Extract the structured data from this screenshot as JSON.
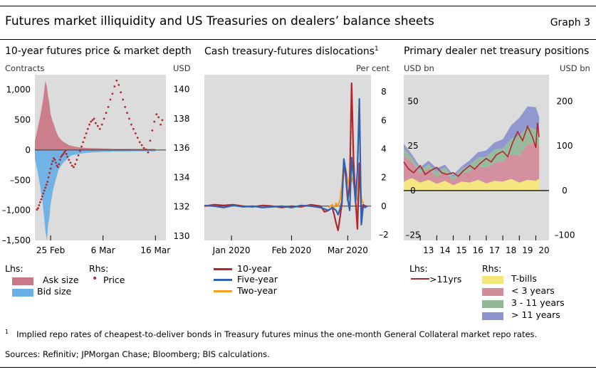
{
  "header": {
    "title": "Futures market illiquidity and US Treasuries on dealers’ balance sheets",
    "graph_label": "Graph 3"
  },
  "footnote": {
    "marker": "1",
    "text": "Implied repo rates of cheapest-to-deliver bonds in Treasury futures minus the one-month General Collateral market repo rates."
  },
  "sources": "Sources: Refinitiv; JPMorgan Chase; Bloomberg; BIS calculations.",
  "colors": {
    "panel_bg": "#dcdcdc",
    "ask": "#c97887",
    "bid": "#6ab0e4",
    "price": "#b0282e",
    "ten_year": "#b0282e",
    "five_year": "#2e62b0",
    "two_year": "#f5a020",
    "tbills": "#f4e77a",
    "lt3": "#d28b9a",
    "y3_11": "#92b898",
    "gt11": "#8c93cf",
    "net11": "#b0282e"
  },
  "chart_data": [
    {
      "type": "bar",
      "title": "10-year futures price & market depth",
      "left_unit": "Contracts",
      "right_unit": "USD",
      "ylim": [
        -1500,
        1250
      ],
      "y2lim": [
        129.7,
        141.0
      ],
      "yticks": [
        "1,000",
        "500",
        "0",
        "–500",
        "–1,000",
        "–1,500"
      ],
      "yticks_values": [
        1000,
        500,
        0,
        -500,
        -1000,
        -1500
      ],
      "y2ticks": [
        "140",
        "138",
        "136",
        "134",
        "132",
        "130"
      ],
      "y2ticks_values": [
        140,
        138,
        136,
        134,
        132,
        130
      ],
      "xticks": [
        "25 Feb",
        "6 Mar",
        "16 Mar"
      ],
      "xticks_values": [
        0,
        10,
        20
      ],
      "xlim": [
        -3,
        22
      ],
      "legend_headers": {
        "lhs": "Lhs:",
        "rhs": "Rhs:"
      },
      "series": [
        {
          "name": "Ask size",
          "axis": "left",
          "kind": "area",
          "color": "#c97887",
          "x": [
            -3,
            -2.5,
            -2,
            -1.5,
            -1.2,
            -1,
            -0.7,
            -0.5,
            -0.2,
            0,
            0.3,
            0.5,
            0.8,
            1,
            1.3,
            1.5,
            2,
            2.5,
            3,
            3.5,
            4,
            5,
            6,
            7,
            8,
            9,
            10,
            11,
            12,
            13,
            14,
            15,
            16,
            17,
            18,
            19,
            20
          ],
          "values": [
            150,
            350,
            550,
            800,
            1000,
            1150,
            1050,
            900,
            750,
            600,
            500,
            450,
            380,
            320,
            260,
            220,
            170,
            130,
            110,
            80,
            70,
            50,
            40,
            35,
            30,
            30,
            25,
            25,
            20,
            20,
            20,
            20,
            20,
            20,
            20,
            20,
            20
          ]
        },
        {
          "name": "Bid size",
          "axis": "left",
          "kind": "area",
          "color": "#6ab0e4",
          "x": [
            -3,
            -2.5,
            -2,
            -1.5,
            -1.2,
            -1,
            -0.7,
            -0.5,
            -0.2,
            0,
            0.3,
            0.5,
            0.8,
            1,
            1.3,
            1.5,
            2,
            2.5,
            3,
            3.5,
            4,
            5,
            6,
            7,
            8,
            9,
            10,
            11,
            12,
            13,
            14,
            15,
            16,
            17,
            18,
            19,
            20
          ],
          "values": [
            -150,
            -350,
            -600,
            -900,
            -1150,
            -1350,
            -1500,
            -1250,
            -1100,
            -900,
            -750,
            -650,
            -550,
            -480,
            -400,
            -330,
            -260,
            -200,
            -160,
            -120,
            -90,
            -70,
            -55,
            -45,
            -40,
            -35,
            -30,
            -30,
            -25,
            -25,
            -25,
            -25,
            -20,
            -20,
            -20,
            -20,
            -20
          ]
        },
        {
          "name": "Price",
          "axis": "right",
          "kind": "points",
          "color": "#b0282e",
          "x": [
            -2.6,
            -2.4,
            -2.2,
            -2,
            -1.8,
            -1.6,
            -1.4,
            -1.2,
            -1,
            -0.8,
            -0.6,
            -0.4,
            -0.2,
            0,
            0.2,
            0.4,
            0.6,
            0.8,
            1,
            1.2,
            1.4,
            1.6,
            1.8,
            2,
            2.2,
            2.4,
            2.6,
            2.8,
            3,
            3.2,
            3.5,
            3.8,
            4.1,
            4.4,
            4.7,
            5,
            5.3,
            5.6,
            5.9,
            6.2,
            6.5,
            6.8,
            7.1,
            7.4,
            7.7,
            8,
            8.3,
            8.6,
            9,
            9.4,
            9.8,
            10.2,
            10.6,
            11,
            11.4,
            11.8,
            12.2,
            12.6,
            13,
            13.4,
            13.8,
            14.2,
            14.6,
            15,
            15.4,
            15.8,
            16.2,
            16.6,
            17,
            17.4,
            17.8,
            18.2,
            18.6,
            19,
            19.4,
            19.8,
            20.2,
            20.6,
            21,
            21.3
          ],
          "values": [
            131.8,
            131.9,
            132.1,
            132.3,
            132.5,
            132.7,
            132.9,
            133.1,
            133.3,
            133.5,
            133.7,
            134.0,
            134.3,
            134.6,
            134.9,
            135.1,
            135.3,
            135.2,
            135.0,
            134.8,
            134.7,
            134.9,
            135.2,
            135.4,
            135.5,
            135.6,
            135.7,
            135.8,
            135.6,
            135.4,
            135.2,
            135.0,
            134.8,
            134.7,
            134.9,
            135.2,
            135.5,
            135.8,
            136.1,
            136.4,
            136.7,
            137.0,
            137.3,
            137.6,
            137.8,
            137.9,
            138.0,
            137.7,
            137.5,
            137.3,
            137.6,
            138.0,
            138.4,
            138.8,
            139.3,
            139.7,
            140.2,
            140.6,
            140.3,
            139.8,
            139.3,
            138.8,
            138.4,
            138.0,
            137.6,
            137.3,
            137.0,
            136.7,
            136.4,
            136.2,
            136.0,
            135.9,
            135.7,
            136.5,
            137.2,
            137.8,
            138.3,
            138.1,
            137.6,
            137.9
          ]
        }
      ]
    },
    {
      "type": "line",
      "title": "Cash treasury-futures dislocations",
      "title_marker": "1",
      "right_unit": "Per cent",
      "ylim": [
        -2.4,
        9.2
      ],
      "yticks": [
        "8",
        "6",
        "4",
        "2",
        "0",
        "–2"
      ],
      "yticks_values": [
        8,
        6,
        4,
        2,
        0,
        -2
      ],
      "xticks": [
        "Jan 2020",
        "Feb 2020",
        "Mar 2020"
      ],
      "xticks_values": [
        14,
        45,
        74
      ],
      "xlim": [
        0,
        86
      ],
      "series": [
        {
          "name": "10-year",
          "color": "#b0282e",
          "x": [
            0,
            5,
            10,
            15,
            20,
            25,
            30,
            35,
            40,
            45,
            50,
            55,
            60,
            62,
            64,
            66,
            67,
            68,
            69,
            70,
            71,
            72,
            73,
            74,
            75,
            76,
            77,
            78,
            79,
            80,
            81,
            82,
            83,
            84
          ],
          "values": [
            0,
            0.1,
            0.05,
            0.1,
            0.0,
            -0.05,
            0.05,
            0.0,
            -0.1,
            0.0,
            -0.05,
            0.1,
            0.0,
            -0.4,
            -0.3,
            -0.1,
            -0.6,
            -1.2,
            -1.7,
            -0.8,
            0.2,
            3.2,
            2.0,
            0.4,
            1.5,
            8.6,
            3.2,
            0.5,
            -1.6,
            3.0,
            -0.3,
            0.1,
            0.0,
            0.0
          ]
        },
        {
          "name": "Five-year",
          "color": "#2e62b0",
          "x": [
            0,
            5,
            10,
            15,
            20,
            25,
            30,
            35,
            40,
            45,
            50,
            55,
            60,
            62,
            64,
            66,
            67,
            68,
            69,
            70,
            71,
            72,
            73,
            74,
            75,
            76,
            77,
            78,
            79,
            80,
            81,
            82,
            83,
            84
          ],
          "values": [
            0.05,
            0.0,
            -0.1,
            0.05,
            -0.05,
            0.0,
            -0.1,
            -0.05,
            0.0,
            -0.1,
            0.05,
            0.0,
            -0.1,
            -0.2,
            -0.3,
            -0.1,
            -0.2,
            -0.3,
            -0.6,
            -0.2,
            0.3,
            3.3,
            2.4,
            0.5,
            -0.3,
            3.4,
            2.0,
            0.3,
            2.5,
            7.5,
            -1.3,
            0.0,
            -0.1,
            0.0
          ]
        },
        {
          "name": "Two-year",
          "color": "#f5a020",
          "x": [
            64,
            66,
            67,
            68,
            69,
            70,
            71,
            72,
            73,
            74,
            75,
            76,
            77,
            78,
            79,
            80,
            81,
            82
          ],
          "values": [
            -0.1,
            0.1,
            -0.1,
            0.2,
            0.0,
            0.4,
            1.5,
            3.0,
            2.6,
            1.8,
            1.2,
            2.0,
            1.6,
            0.8,
            0.4,
            2.0,
            0.5,
            0.2
          ]
        }
      ]
    },
    {
      "type": "area",
      "title": "Primary dealer net treasury positions",
      "left_unit": "USD bn",
      "right_unit": "USD bn",
      "ylim": [
        -28,
        65
      ],
      "y2lim": [
        -112,
        260
      ],
      "yticks": [
        "50",
        "25",
        "0",
        "–25"
      ],
      "yticks_values": [
        50,
        25,
        0,
        -25
      ],
      "y2ticks": [
        "200",
        "100",
        "0",
        "–100"
      ],
      "y2ticks_values": [
        200,
        100,
        0,
        -100
      ],
      "xticks": [
        "13",
        "14",
        "15",
        "16",
        "17",
        "18",
        "19",
        "20"
      ],
      "xticks_values": [
        2013,
        2014,
        2015,
        2016,
        2017,
        2018,
        2019,
        2020
      ],
      "xlim": [
        2012.0,
        2020.8
      ],
      "legend_headers": {
        "lhs": "Lhs:",
        "rhs": "Rhs:"
      },
      "series": [
        {
          "name": ">11yrs",
          "axis": "left",
          "kind": "line",
          "color": "#b0282e",
          "x": [
            2012.0,
            2012.3,
            2012.6,
            2013.0,
            2013.3,
            2013.6,
            2014.0,
            2014.3,
            2014.6,
            2015.0,
            2015.3,
            2015.6,
            2016.0,
            2016.3,
            2016.6,
            2017.0,
            2017.3,
            2017.6,
            2018.0,
            2018.3,
            2018.6,
            2018.9,
            2019.2,
            2019.5,
            2019.8,
            2020.0,
            2020.1,
            2020.2
          ],
          "values": [
            16,
            12,
            10,
            14,
            9,
            11,
            13,
            10,
            9,
            10,
            8,
            11,
            14,
            12,
            15,
            18,
            16,
            20,
            22,
            19,
            27,
            33,
            28,
            36,
            30,
            24,
            38,
            30
          ]
        },
        {
          "name": "T-bills",
          "axis": "right",
          "kind": "area",
          "color": "#f4e77a",
          "x": [
            2012.0,
            2012.5,
            2013.0,
            2013.5,
            2014.0,
            2014.5,
            2015.0,
            2015.5,
            2016.0,
            2016.5,
            2017.0,
            2017.5,
            2018.0,
            2018.5,
            2019.0,
            2019.5,
            2020.0,
            2020.2
          ],
          "values": [
            20,
            28,
            18,
            24,
            15,
            22,
            12,
            20,
            18,
            24,
            16,
            22,
            20,
            26,
            18,
            24,
            22,
            26
          ]
        },
        {
          "name": "< 3 years",
          "axis": "right",
          "kind": "area",
          "color": "#d28b9a",
          "x": [
            2012.0,
            2012.5,
            2013.0,
            2013.5,
            2014.0,
            2014.5,
            2015.0,
            2015.5,
            2016.0,
            2016.5,
            2017.0,
            2017.5,
            2018.0,
            2018.5,
            2019.0,
            2019.5,
            2020.0,
            2020.2
          ],
          "values": [
            60,
            35,
            20,
            25,
            15,
            20,
            10,
            18,
            25,
            30,
            35,
            40,
            45,
            55,
            60,
            80,
            85,
            75
          ]
        },
        {
          "name": "3 - 11 years",
          "axis": "right",
          "kind": "area",
          "color": "#92b898",
          "x": [
            2012.0,
            2012.5,
            2013.0,
            2013.5,
            2014.0,
            2014.5,
            2015.0,
            2015.5,
            2016.0,
            2016.5,
            2017.0,
            2017.5,
            2018.0,
            2018.5,
            2019.0,
            2019.5,
            2020.0,
            2020.2
          ],
          "values": [
            15,
            10,
            8,
            10,
            12,
            10,
            8,
            10,
            15,
            20,
            25,
            30,
            30,
            35,
            45,
            40,
            30,
            25
          ]
        },
        {
          "name": "> 11 years",
          "axis": "right",
          "kind": "area",
          "color": "#8c93cf",
          "x": [
            2012.0,
            2012.5,
            2013.0,
            2013.5,
            2014.0,
            2014.5,
            2015.0,
            2015.5,
            2016.0,
            2016.5,
            2017.0,
            2017.5,
            2018.0,
            2018.5,
            2019.0,
            2019.5,
            2020.0,
            2020.2
          ],
          "values": [
            10,
            8,
            6,
            8,
            8,
            6,
            5,
            6,
            10,
            12,
            14,
            16,
            20,
            30,
            40,
            45,
            50,
            40
          ]
        }
      ]
    }
  ]
}
